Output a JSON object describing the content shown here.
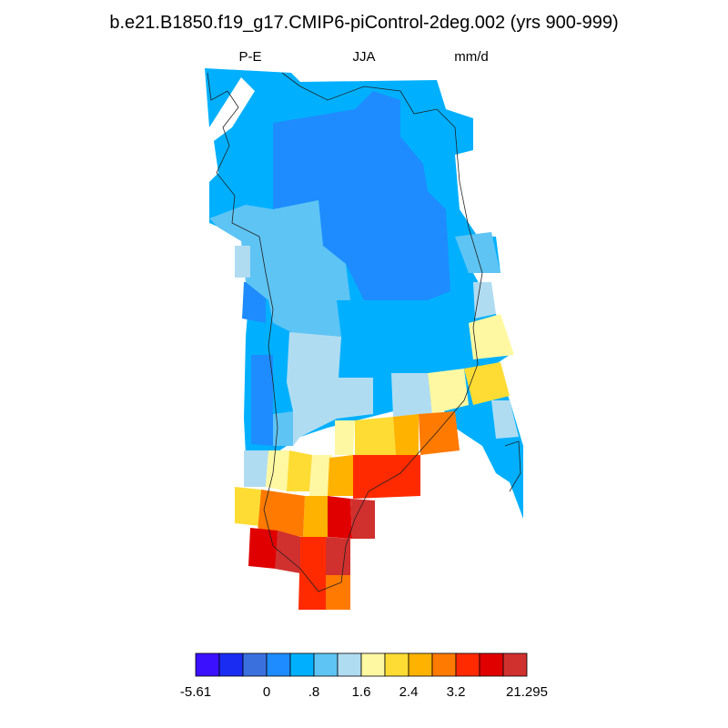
{
  "header": {
    "title": "b.e21.B1850.f19_g17.CMIP6-piControl-2deg.002 (yrs 900-999)",
    "left_label": "P-E",
    "center_label": "JJA",
    "right_label": "mm/d"
  },
  "colorbar": {
    "colors": [
      "#3b10ff",
      "#1a2cf2",
      "#3a6fde",
      "#1e8cff",
      "#00b0ff",
      "#5ec4f4",
      "#b0dcf2",
      "#fff8a2",
      "#ffdc34",
      "#ffb200",
      "#ff7a00",
      "#ff2a00",
      "#e00000",
      "#d0302e"
    ],
    "labels": [
      "-5.61",
      "0",
      ".8",
      "1.6",
      "2.4",
      "3.2",
      "21.295"
    ]
  }
}
